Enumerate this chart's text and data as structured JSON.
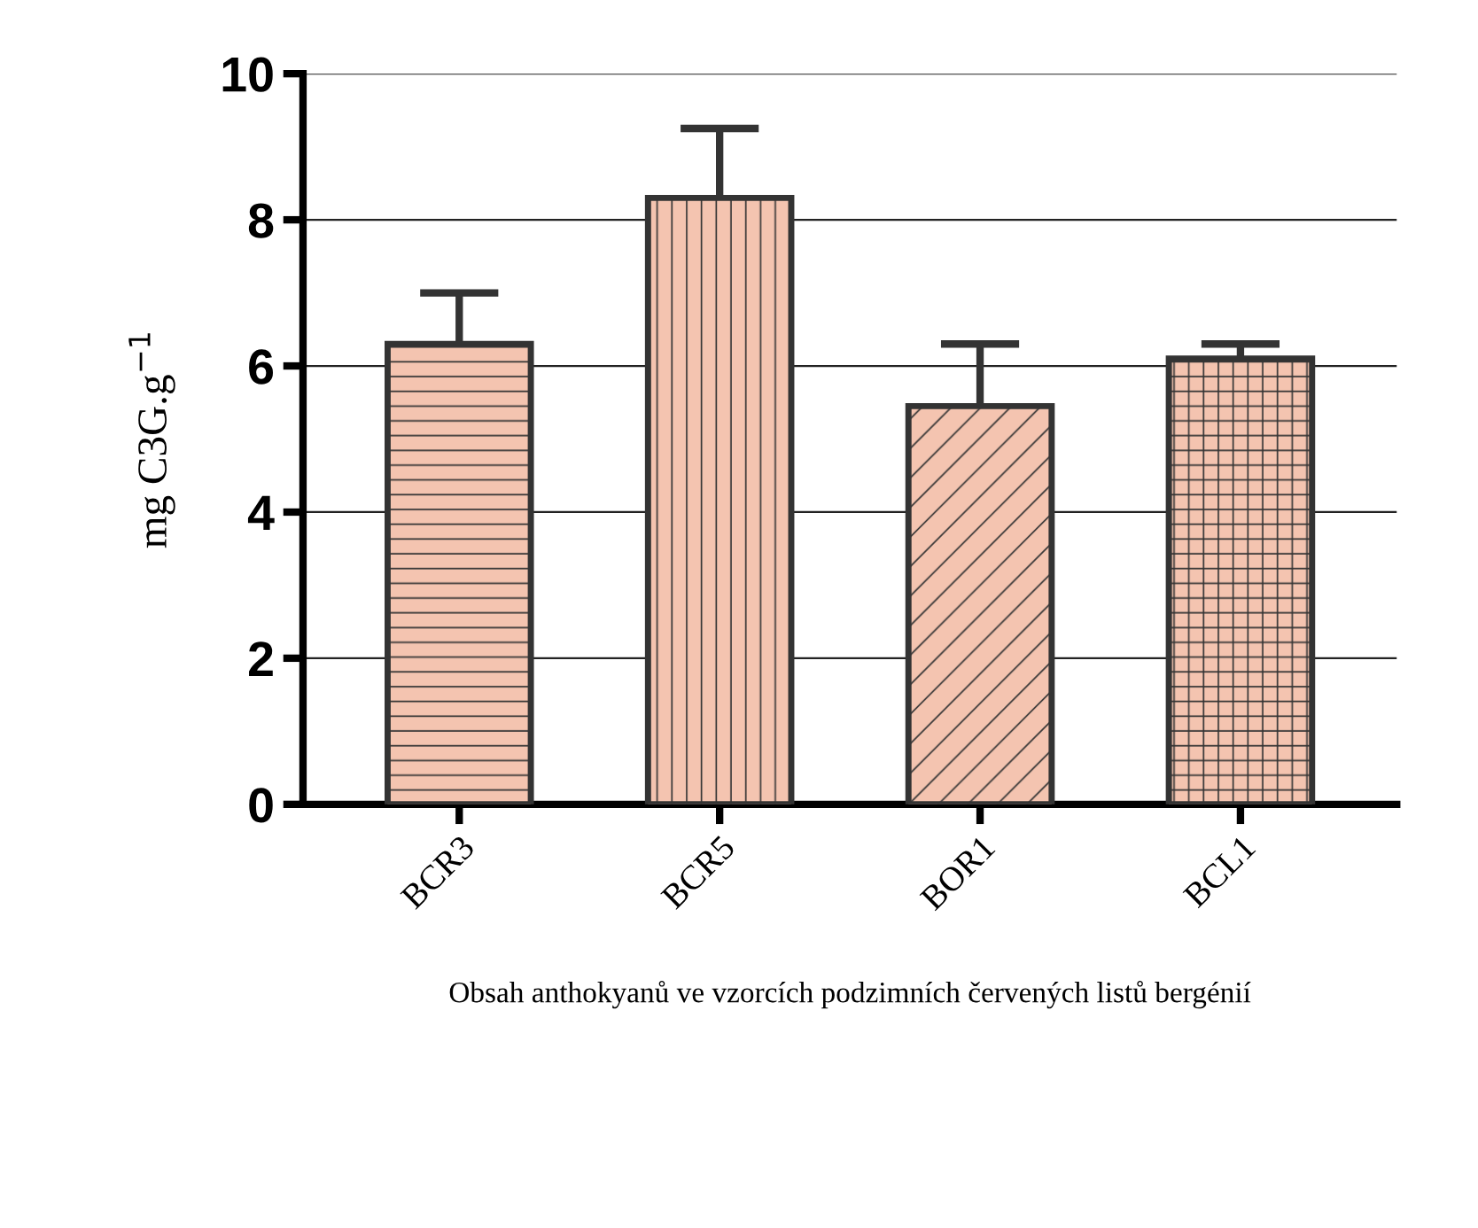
{
  "chart_data": {
    "type": "bar",
    "ylabel": "mg C3G.g$^{−1}$",
    "categories": [
      "BCR3",
      "BCR5",
      "BOR1",
      "BCL1"
    ],
    "values": [
      6.3,
      8.3,
      5.45,
      6.1
    ],
    "errors": [
      [
        6.3,
        7.0
      ],
      [
        8.3,
        9.25
      ],
      [
        5.45,
        6.3
      ],
      [
        6.1,
        6.3
      ]
    ],
    "color": "#f4c4b0",
    "ylim": [
      0,
      10
    ],
    "yticks": [
      0,
      2,
      4,
      6,
      8,
      10
    ],
    "grid": "y",
    "annotations": [
      "Obsah anthokyanů ve vzorcích podzimních červených listů bergénií"
    ]
  }
}
